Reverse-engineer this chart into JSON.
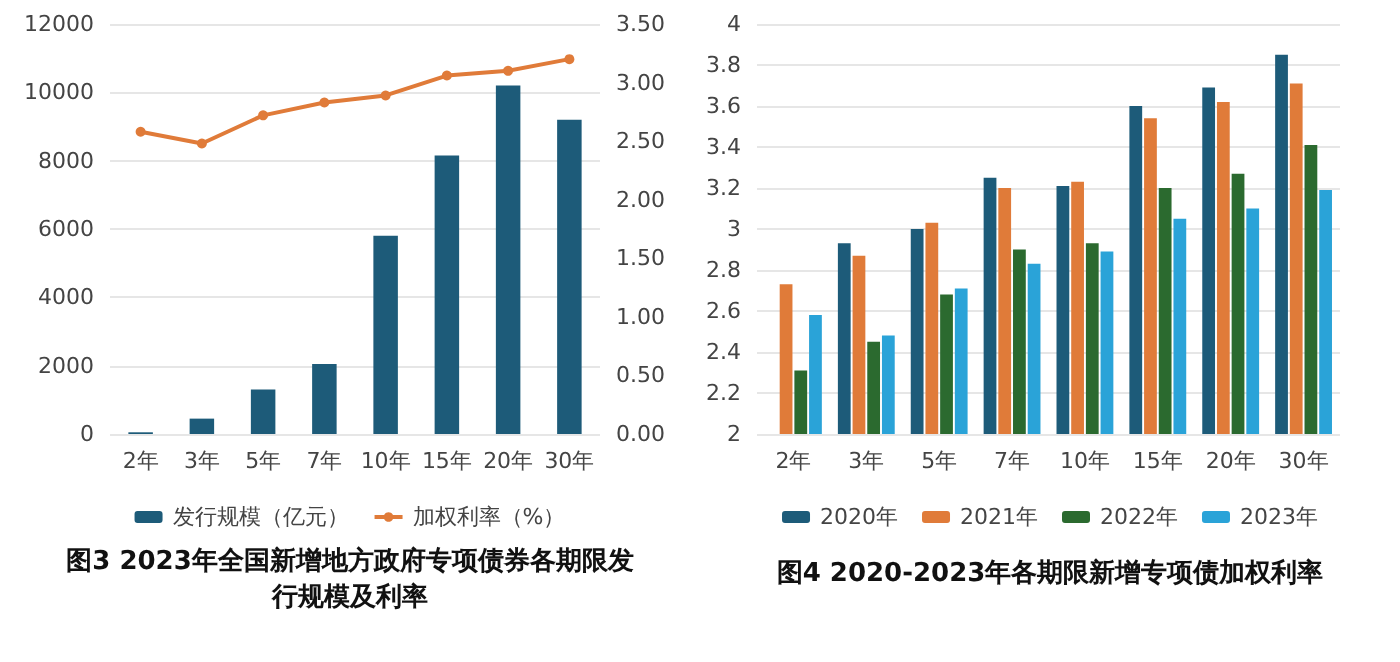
{
  "chart_data": [
    {
      "type": "bar",
      "title": "图3 2023年全国新增地方政府专项债券各期限发行规模及利率",
      "categories": [
        "2年",
        "3年",
        "5年",
        "7年",
        "10年",
        "15年",
        "20年",
        "30年"
      ],
      "series": [
        {
          "name": "发行规模（亿元）",
          "color": "#1d5b79",
          "values": [
            50,
            450,
            1300,
            2050,
            5800,
            8150,
            10200,
            9200
          ]
        },
        {
          "name": "加权利率（%）",
          "type": "line",
          "axis": "y2",
          "color": "#e07b39",
          "marker": "circle",
          "values": [
            2.58,
            2.48,
            2.72,
            2.83,
            2.89,
            3.06,
            3.1,
            3.2
          ]
        }
      ],
      "ylim": [
        0,
        12000
      ],
      "yticks": [
        0,
        2000,
        4000,
        6000,
        8000,
        10000,
        12000
      ],
      "y2lim": [
        0,
        3.5
      ],
      "y2ticks": [
        {
          "value": 0,
          "label": "0.00"
        },
        {
          "value": 0.5,
          "label": "0.50"
        },
        {
          "value": 1,
          "label": "1.00"
        },
        {
          "value": 1.5,
          "label": "1.50"
        },
        {
          "value": 2,
          "label": "2.00"
        },
        {
          "value": 2.5,
          "label": "2.50"
        },
        {
          "value": 3,
          "label": "3.00"
        },
        {
          "value": 3.5,
          "label": "3.50"
        }
      ],
      "grid": "y",
      "legend": "bottom"
    },
    {
      "type": "bar",
      "title": "图4 2020-2023年各期限新增专项债加权利率",
      "categories": [
        "2年",
        "3年",
        "5年",
        "7年",
        "10年",
        "15年",
        "20年",
        "30年"
      ],
      "series": [
        {
          "name": "2020年",
          "color": "#1d5b79",
          "values": [
            null,
            2.93,
            3.0,
            3.25,
            3.21,
            3.6,
            3.69,
            3.85
          ]
        },
        {
          "name": "2021年",
          "color": "#e07b39",
          "values": [
            2.73,
            2.87,
            3.03,
            3.2,
            3.23,
            3.54,
            3.62,
            3.71
          ]
        },
        {
          "name": "2022年",
          "color": "#2b6a2f",
          "values": [
            2.31,
            2.45,
            2.68,
            2.9,
            2.93,
            3.2,
            3.27,
            3.41
          ]
        },
        {
          "name": "2023年",
          "color": "#2aa3d8",
          "values": [
            2.58,
            2.48,
            2.71,
            2.83,
            2.89,
            3.05,
            3.1,
            3.19
          ]
        }
      ],
      "ylim": [
        2,
        4
      ],
      "yticks": [
        2,
        2.2,
        2.4,
        2.6,
        2.8,
        3,
        3.2,
        3.4,
        3.6,
        3.8,
        4
      ],
      "grid": "y",
      "legend": "bottom"
    }
  ]
}
